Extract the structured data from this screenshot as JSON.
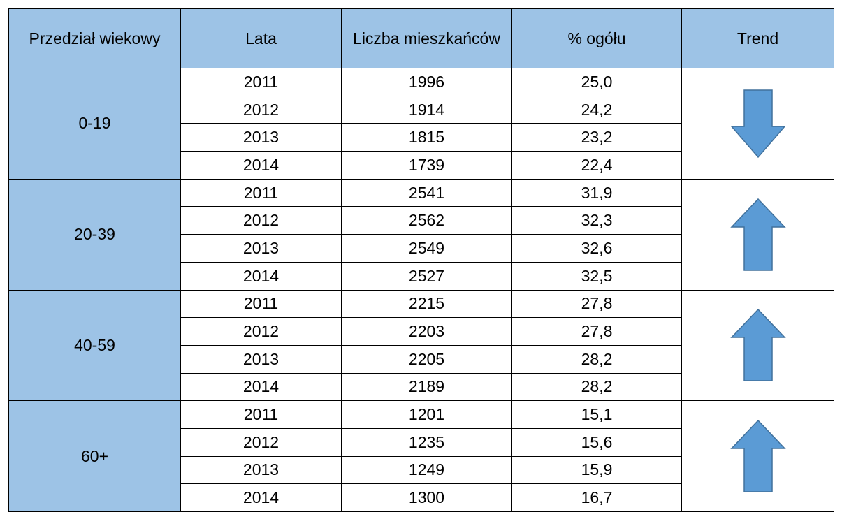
{
  "table": {
    "header": [
      "Przedział wiekowy",
      "Lata",
      "Liczba mieszkańców",
      "% ogółu",
      "Trend"
    ],
    "groups": [
      {
        "age": "0-19",
        "rows": [
          [
            "2011",
            "1996",
            "25,0"
          ],
          [
            "2012",
            "1914",
            "24,2"
          ],
          [
            "2013",
            "1815",
            "23,2"
          ],
          [
            "2014",
            "1739",
            "22,4"
          ]
        ]
      },
      {
        "age": "20-39",
        "rows": [
          [
            "2011",
            "2541",
            "31,9"
          ],
          [
            "2012",
            "2562",
            "32,3"
          ],
          [
            "2013",
            "2549",
            "32,6"
          ],
          [
            "2014",
            "2527",
            "32,5"
          ]
        ]
      },
      {
        "age": "40-59",
        "rows": [
          [
            "2011",
            "2215",
            "27,8"
          ],
          [
            "2012",
            "2203",
            "27,8"
          ],
          [
            "2013",
            "2205",
            "28,2"
          ],
          [
            "2014",
            "2189",
            "28,2"
          ]
        ]
      },
      {
        "age": "60+",
        "rows": [
          [
            "2011",
            "1201",
            "15,1"
          ],
          [
            "2012",
            "1235",
            "15,6"
          ],
          [
            "2013",
            "1249",
            "15,9"
          ],
          [
            "2014",
            "1300",
            "16,7"
          ]
        ]
      }
    ]
  }
}
